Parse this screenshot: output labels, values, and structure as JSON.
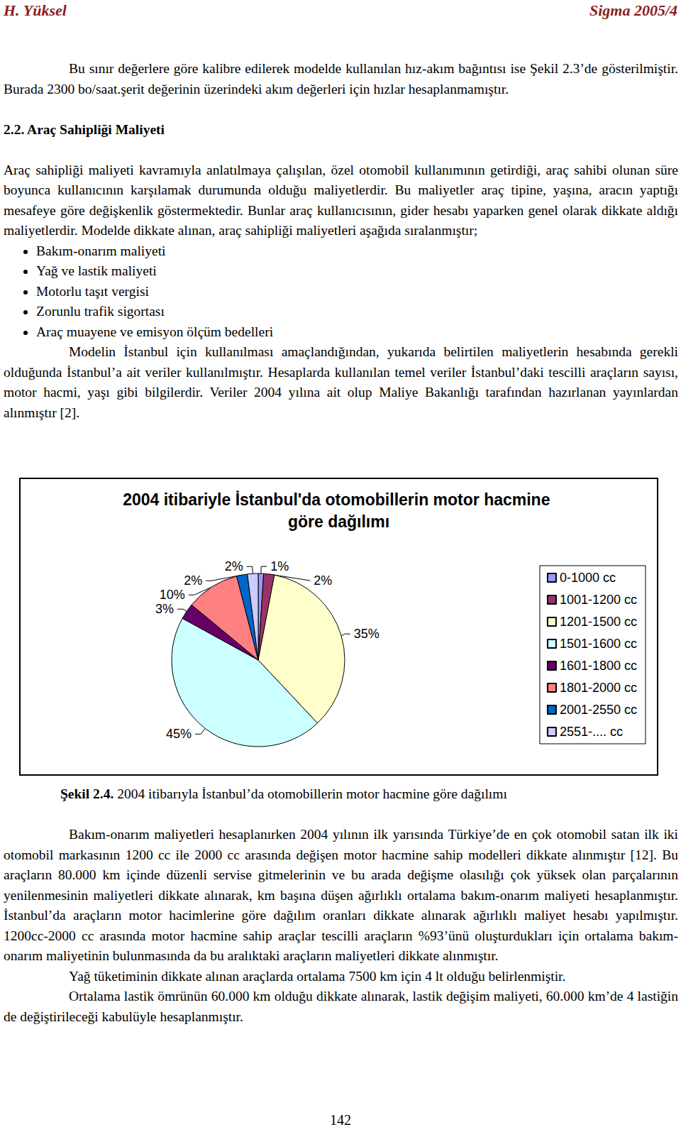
{
  "header": {
    "left": "H. Yüksel",
    "right": "Sigma 2005/4"
  },
  "intro_paragraph": "Bu sınır değerlere göre kalibre edilerek modelde kullanılan hız-akım bağıntısı ise Şekil 2.3’de gösterilmiştir. Burada 2300 bo/saat.şerit değerinin üzerindeki akım değerleri için hızlar hesaplanmamıştır.",
  "section_heading": "2.2. Araç Sahipliği Maliyeti",
  "section_paragraph": "Araç sahipliği maliyeti kavramıyla anlatılmaya çalışılan, özel otomobil kullanımının getirdiği, araç sahibi olunan süre boyunca kullanıcının karşılamak durumunda olduğu maliyetlerdir. Bu maliyetler araç tipine, yaşına, aracın yaptığı mesafeye göre değişkenlik göstermektedir. Bunlar araç kullanıcısının, gider hesabı yaparken genel olarak dikkate aldığı maliyetlerdir. Modelde dikkate alınan, araç sahipliği maliyetleri aşağıda sıralanmıştır;",
  "bullets": [
    "Bakım-onarım maliyeti",
    "Yağ ve lastik maliyeti",
    "Motorlu taşıt vergisi",
    "Zorunlu trafik sigortası",
    "Araç muayene ve emisyon ölçüm bedelleri"
  ],
  "paragraph_after_bullets": "Modelin İstanbul için kullanılması amaçlandığından, yukarıda belirtilen maliyetlerin hesabında gerekli olduğunda İstanbul’a ait veriler kullanılmıştır. Hesaplarda kullanılan temel veriler İstanbul’daki tescilli araçların sayısı, motor hacmi, yaşı gibi bilgilerdir. Veriler 2004 yılına ait olup Maliye Bakanlığı tarafından hazırlanan yayınlardan alınmıştır [2].",
  "chart_data": {
    "type": "pie",
    "title": "2004 itibariyle İstanbul'da otomobillerin motor hacmine göre dağılımı",
    "categories": [
      "0-1000 cc",
      "1001-1200 cc",
      "1201-1500 cc",
      "1501-1600 cc",
      "1601-1800 cc",
      "1801-2000 cc",
      "2001-2550 cc",
      "2551-.... cc"
    ],
    "values": [
      1,
      2,
      35,
      45,
      3,
      10,
      2,
      2
    ],
    "value_labels": [
      "1%",
      "2%",
      "35%",
      "45%",
      "3%",
      "10%",
      "2%",
      "2%"
    ],
    "colors": [
      "#9999ff",
      "#993366",
      "#ffffcc",
      "#ccffff",
      "#660066",
      "#ff8080",
      "#0066cc",
      "#ccccff"
    ],
    "data_labels": true,
    "legend": "right"
  },
  "caption": {
    "label": "Şekil 2.4.",
    "text": "2004 itibarıyla İstanbul’da otomobillerin motor hacmine göre dağılımı"
  },
  "paragraphs_after": [
    "Bakım-onarım maliyetleri hesaplanırken 2004 yılının ilk yarısında Türkiye’de en çok otomobil satan ilk iki otomobil markasının 1200 cc ile 2000 cc arasında değişen motor hacmine sahip modelleri dikkate alınmıştır [12]. Bu araçların 80.000 km içinde düzenli servise gitmelerinin ve bu arada değişme olasılığı çok yüksek olan parçalarının yenilenmesinin maliyetleri dikkate alınarak, km başına düşen ağırlıklı ortalama bakım-onarım maliyeti hesaplanmıştır. İstanbul’da araçların motor hacimlerine göre dağılım oranları dikkate alınarak ağırlıklı maliyet hesabı yapılmıştır. 1200cc-2000 cc arasında motor hacmine sahip araçlar tescilli araçların %93’ünü oluşturdukları için ortalama bakım-onarım maliyetinin bulunmasında da bu aralıktaki araçların maliyetleri dikkate alınmıştır.",
    "Yağ tüketiminin dikkate alınan araçlarda ortalama 7500 km için 4 lt olduğu belirlenmiştir.",
    "Ortalama lastik ömrünün 60.000 km olduğu dikkate alınarak, lastik değişim maliyeti, 60.000 km’de 4 lastiğin de değiştirileceği kabulüyle hesaplanmıştır."
  ],
  "page_number": "142"
}
